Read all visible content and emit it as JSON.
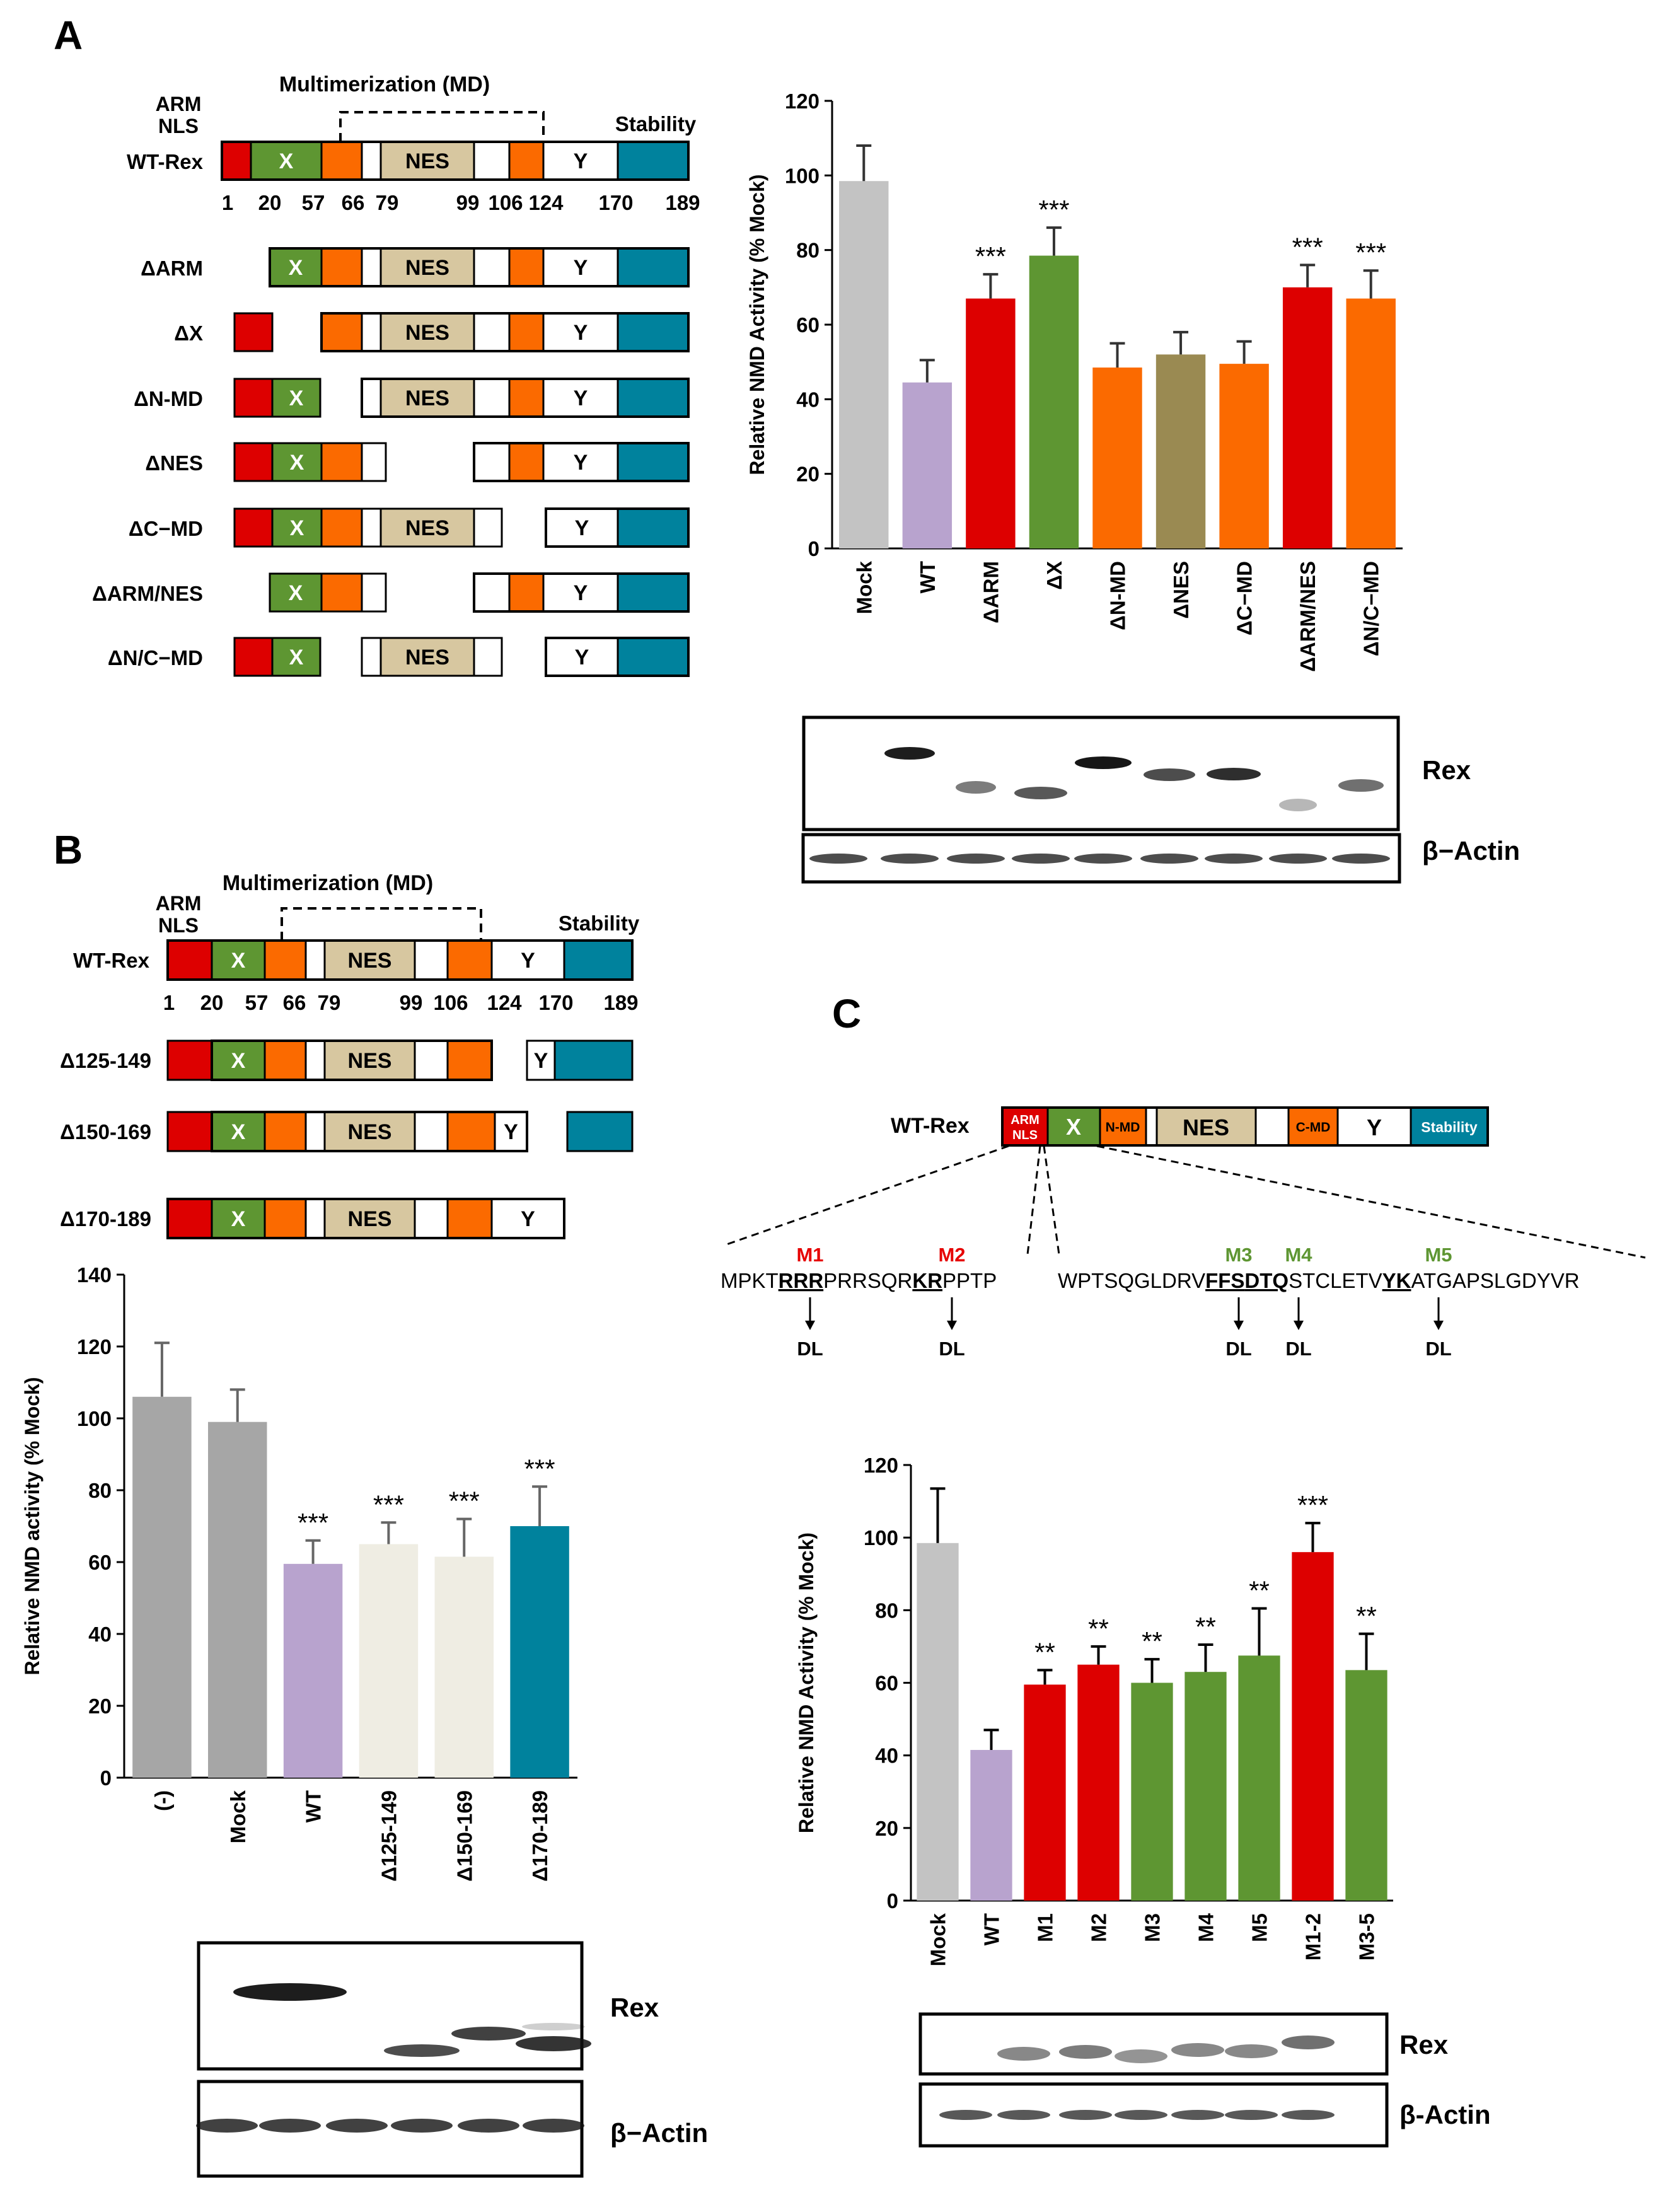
{
  "colors": {
    "arm": "#dd0000",
    "x": "#5e9632",
    "md": "#fb6a00",
    "nes": "#d7c7a0",
    "stab": "#00829d",
    "grey": "#a6a6a6",
    "lightgrey": "#c3c3c3",
    "lavender": "#b8a3ce",
    "olive": "#9a8a52",
    "cream": "#efede3"
  },
  "panelA": {
    "letter": "A",
    "md_label": "Multimerization (MD)",
    "arm_label": [
      "ARM",
      "NLS"
    ],
    "stability_label": "Stability",
    "segment_labels": {
      "x": "X",
      "nes": "NES",
      "y": "Y"
    },
    "constructs": [
      "WT-Rex",
      "ΔARM",
      "ΔX",
      "ΔN-MD",
      "ΔNES",
      "ΔC−MD",
      "ΔARM/NES",
      "ΔN/C−MD"
    ],
    "numbers": [
      "1",
      "20",
      "57",
      "66",
      "79",
      "99",
      "106",
      "124",
      "170",
      "189"
    ],
    "blot_labels": [
      "Rex",
      "β−Actin"
    ]
  },
  "panelB": {
    "letter": "B",
    "md_label": "Multimerization (MD)",
    "arm_label": [
      "ARM",
      "NLS"
    ],
    "stability_label": "Stability",
    "segment_labels": {
      "x": "X",
      "nes": "NES",
      "y": "Y"
    },
    "constructs": [
      "WT-Rex",
      "Δ125-149",
      "Δ150-169",
      "Δ170-189"
    ],
    "numbers": [
      "1",
      "20",
      "57",
      "66",
      "79",
      "99",
      "106",
      "124",
      "170",
      "189"
    ],
    "blot_labels": [
      "Rex",
      "β−Actin"
    ]
  },
  "panelC": {
    "letter": "C",
    "construct": "WT-Rex",
    "segment_labels": {
      "arm": [
        "ARM",
        "NLS"
      ],
      "x": "X",
      "nmd": "N-MD",
      "nes": "NES",
      "cmd": "C-MD",
      "y": "Y",
      "stab": "Stability"
    },
    "seq1": {
      "p1": "MPKT",
      "u1": "RRR",
      "p2": "PRRSQR",
      "u2": "KR",
      "p3": "PPTP"
    },
    "seq2": {
      "p1": "WPTSQGLDRV",
      "u1": "FFS",
      "u2": "DTQ",
      "p2": "STCLETV",
      "u3": "YK",
      "p3": "ATGAPSLGDYVR"
    },
    "mutations": [
      "M1",
      "M2",
      "M3",
      "M4",
      "M5"
    ],
    "dl": "DL",
    "blot_labels": [
      "Rex",
      "β-Actin"
    ]
  },
  "chart_data": [
    {
      "id": "A",
      "type": "bar",
      "ylabel": "Relative NMD Activity (% Mock)",
      "ylim": [
        0,
        120
      ],
      "yticks": [
        0,
        20,
        40,
        60,
        80,
        100,
        120
      ],
      "categories": [
        "Mock",
        "WT",
        "ΔARM",
        "ΔX",
        "ΔN-MD",
        "ΔNES",
        "ΔC−MD",
        "ΔARM/NES",
        "ΔN/C−MD"
      ],
      "values": [
        98.5,
        44.5,
        67,
        78.5,
        48.5,
        52,
        49.5,
        70,
        67
      ],
      "errors": [
        9.5,
        6,
        6.5,
        7.5,
        6.5,
        6,
        6,
        6,
        7.5
      ],
      "significance": [
        "",
        "",
        "***",
        "***",
        "",
        "",
        "",
        "***",
        "***"
      ],
      "colors": [
        "#c3c3c3",
        "#b8a3ce",
        "#dd0000",
        "#5e9632",
        "#fb6a00",
        "#9a8a52",
        "#fb6a00",
        "#dd0000",
        "#fb6a00"
      ]
    },
    {
      "id": "B",
      "type": "bar",
      "ylabel": "Relative NMD activity (% Mock)",
      "ylim": [
        0,
        140
      ],
      "yticks": [
        0,
        20,
        40,
        60,
        80,
        100,
        120,
        140
      ],
      "categories": [
        "(-)",
        "Mock",
        "WT",
        "Δ125-149",
        "Δ150-169",
        "Δ170-189"
      ],
      "values": [
        106,
        99,
        59.5,
        65,
        61.5,
        70
      ],
      "errors": [
        15,
        9,
        6.5,
        6,
        10.5,
        11
      ],
      "significance": [
        "",
        "",
        "***",
        "***",
        "***",
        "***"
      ],
      "colors": [
        "#a6a6a6",
        "#a6a6a6",
        "#b8a3ce",
        "#efede3",
        "#efede3",
        "#00829d"
      ]
    },
    {
      "id": "C",
      "type": "bar",
      "ylabel": "Relative NMD Activity (% Mock)",
      "ylim": [
        0,
        120
      ],
      "yticks": [
        0,
        20,
        40,
        60,
        80,
        100,
        120
      ],
      "categories": [
        "Mock",
        "WT",
        "M1",
        "M2",
        "M3",
        "M4",
        "M5",
        "M1-2",
        "M3-5"
      ],
      "values": [
        98.5,
        41.5,
        59.5,
        65,
        60,
        63,
        67.5,
        96,
        63.5
      ],
      "errors": [
        15,
        5.5,
        4,
        5,
        6.5,
        7.5,
        13,
        8,
        10
      ],
      "significance": [
        "",
        "",
        "**",
        "**",
        "**",
        "**",
        "**",
        "***",
        "**"
      ],
      "colors": [
        "#c3c3c3",
        "#b8a3ce",
        "#dd0000",
        "#dd0000",
        "#5e9632",
        "#5e9632",
        "#5e9632",
        "#dd0000",
        "#5e9632"
      ]
    }
  ]
}
